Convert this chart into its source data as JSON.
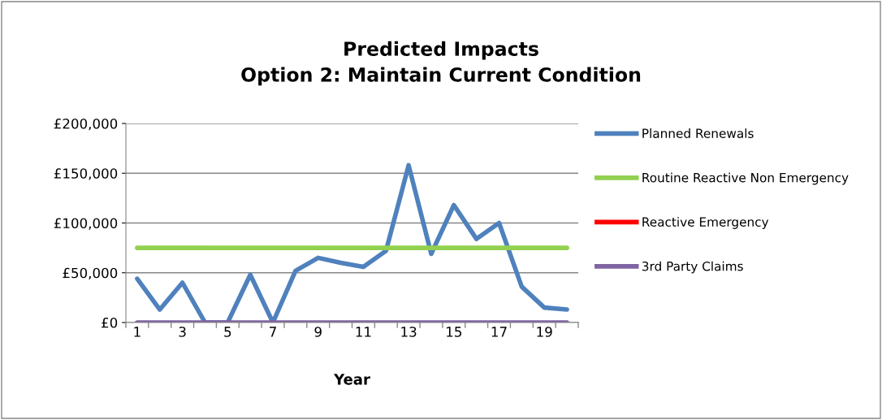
{
  "chart_data": {
    "type": "line",
    "title": "Predicted Impacts\nOption 2: Maintain Current Condition",
    "xlabel": "Year",
    "categories": [
      "1",
      null,
      "3",
      null,
      "5",
      null,
      "7",
      null,
      "9",
      null,
      "11",
      null,
      "13",
      null,
      "15",
      null,
      "17",
      null,
      "19",
      null
    ],
    "series": [
      {
        "name": "Planned Renewals",
        "color": "#4f81bd",
        "values": [
          44000,
          13000,
          40000,
          0,
          0,
          48000,
          0,
          52000,
          65000,
          60000,
          56000,
          72000,
          158000,
          69000,
          118000,
          84000,
          100000,
          36000,
          15000,
          13000
        ]
      },
      {
        "name": "Routine Reactive Non Emergency",
        "color": "#92d050",
        "values": [
          75000,
          75000,
          75000,
          75000,
          75000,
          75000,
          75000,
          75000,
          75000,
          75000,
          75000,
          75000,
          75000,
          75000,
          75000,
          75000,
          75000,
          75000,
          75000,
          75000
        ]
      },
      {
        "name": "Reactive Emergency",
        "color": "#ff0000",
        "values": [
          null,
          null,
          null,
          null,
          null,
          null,
          null,
          null,
          null,
          null,
          null,
          null,
          null,
          null,
          null,
          null,
          null,
          null,
          null,
          null
        ]
      },
      {
        "name": "3rd Party Claims",
        "color": "#8064a2",
        "values": [
          0,
          0,
          0,
          0,
          0,
          0,
          0,
          0,
          0,
          0,
          0,
          0,
          0,
          0,
          0,
          0,
          0,
          0,
          0,
          0
        ]
      }
    ],
    "ylim": [
      0,
      200000
    ],
    "yticks": [
      {
        "value": 0,
        "label": "£0"
      },
      {
        "value": 50000,
        "label": "£50,000"
      },
      {
        "value": 100000,
        "label": "£100,000"
      },
      {
        "value": 150000,
        "label": "£150,000"
      },
      {
        "value": 200000,
        "label": "£200,000"
      }
    ],
    "grid": "y",
    "legend": "right",
    "marker": "none",
    "line_style": "solid"
  }
}
